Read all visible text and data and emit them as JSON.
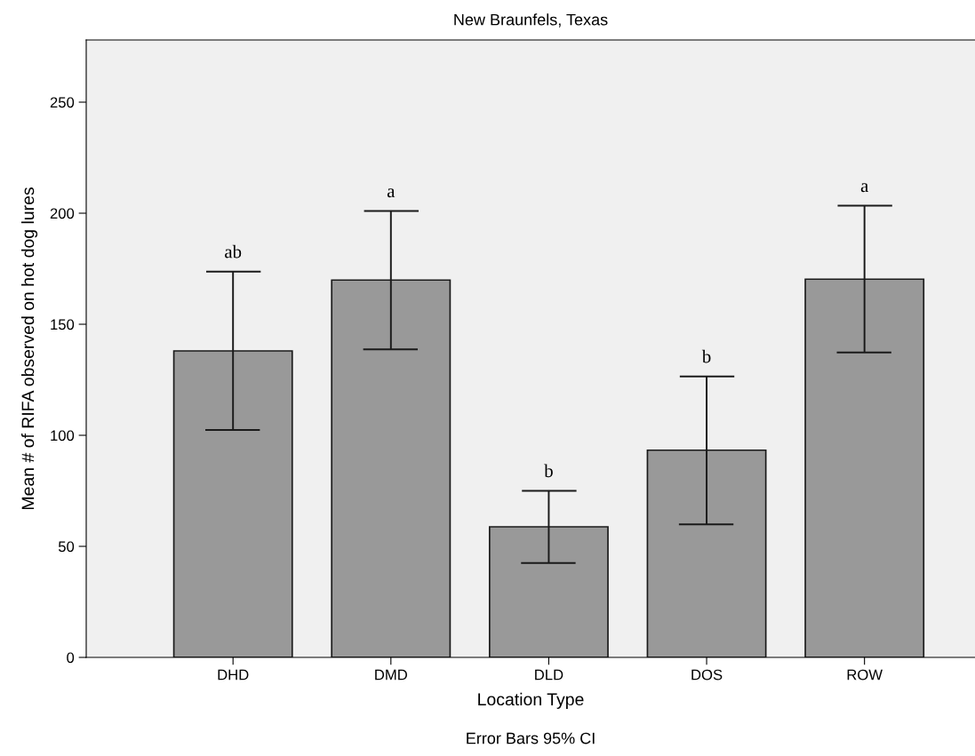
{
  "chart_data": {
    "type": "bar",
    "title": "New Braunfels, Texas",
    "xlabel": "Location Type",
    "ylabel": "Mean # of RIFA observed on hot dog lures",
    "categories": [
      "DHD",
      "DMD",
      "DLD",
      "DOS",
      "ROW"
    ],
    "values": [
      138.0,
      169.9,
      58.8,
      93.3,
      170.3
    ],
    "errors": [
      [
        102.4,
        173.7
      ],
      [
        138.7,
        201.0
      ],
      [
        42.5,
        75.0
      ],
      [
        59.9,
        126.5
      ],
      [
        137.3,
        203.4
      ]
    ],
    "color": "#999999",
    "ylim": [
      0,
      278
    ],
    "yticks": [
      0,
      50,
      100,
      150,
      200,
      250
    ],
    "grid": false,
    "legend": false,
    "annotations": [
      {
        "text": "ab",
        "x": "DHD",
        "y": 173.7
      },
      {
        "text": "a",
        "x": "DMD",
        "y": 201.0
      },
      {
        "text": "b",
        "x": "DLD",
        "y": 75.0
      },
      {
        "text": "b",
        "x": "DOS",
        "y": 126.5
      },
      {
        "text": "a",
        "x": "ROW",
        "y": 203.4
      },
      "Error Bars 95% CI"
    ]
  }
}
